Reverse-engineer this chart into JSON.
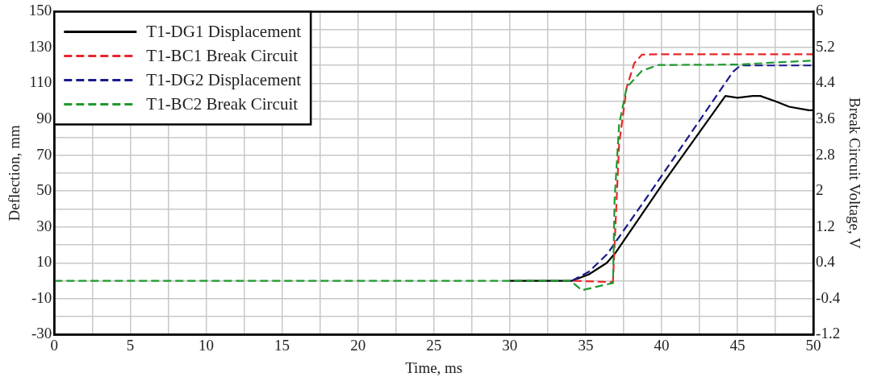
{
  "chart_data": {
    "type": "line",
    "xlabel": "Time, ms",
    "ylabel": "Deflection, mm",
    "y2label": "Break Circuit Voltage, V",
    "xlim": [
      0,
      50
    ],
    "xticks": [
      0,
      {
        "value": 2.5,
        "label": null
      },
      5,
      {
        "value": 7.5,
        "label": null
      },
      10,
      {
        "value": 12.5,
        "label": null
      },
      15,
      {
        "value": 17.5,
        "label": null
      },
      20,
      {
        "value": 22.5,
        "label": null
      },
      25,
      {
        "value": 27.5,
        "label": null
      },
      30,
      {
        "value": 32.5,
        "label": null
      },
      35,
      {
        "value": 37.5,
        "label": null
      },
      40,
      {
        "value": 42.5,
        "label": null
      },
      45,
      {
        "value": 47.5,
        "label": null
      },
      50
    ],
    "ylim": [
      -30,
      150
    ],
    "yticks": [
      -30,
      {
        "value": -20,
        "label": null
      },
      -10,
      {
        "value": 0,
        "label": null
      },
      10,
      {
        "value": 20,
        "label": null
      },
      30,
      {
        "value": 40,
        "label": null
      },
      50,
      {
        "value": 60,
        "label": null
      },
      70,
      {
        "value": 80,
        "label": null
      },
      90,
      {
        "value": 100,
        "label": null
      },
      110,
      {
        "value": 120,
        "label": null
      },
      130,
      {
        "value": 140,
        "label": null
      },
      150
    ],
    "y2lim": [
      -1.2,
      6
    ],
    "y2ticks": [
      -1.2,
      -0.4,
      0.4,
      1.2,
      2,
      2.8,
      3.6,
      4.4,
      5.2,
      6
    ],
    "grid": true,
    "legend": "top left",
    "marker": "none",
    "series": [
      {
        "name": "T1-DG1 Displacement",
        "color": "#000000",
        "line_style": "solid",
        "x": [
          30,
          34.1,
          35.2,
          36.4,
          37,
          40.2,
          44.2,
          45,
          46,
          46.5,
          47.5,
          48.4,
          49.7,
          50
        ],
        "values": [
          0,
          0,
          3.5,
          10,
          16,
          55.6,
          103,
          102,
          103,
          103,
          100,
          97,
          95,
          95
        ]
      },
      {
        "name": "T1-BC1 Break Circuit",
        "color": "#e8262a",
        "line_style": "dashed",
        "axis": "y2",
        "x": [
          34.2,
          36.7,
          36.8,
          37.2,
          37.7,
          38.2,
          38.7,
          40,
          50
        ],
        "values": [
          0,
          -0.03,
          0,
          3.04,
          4.31,
          4.85,
          5.04,
          5.05,
          5.05
        ]
      },
      {
        "name": "T1-DG2 Displacement",
        "color": "#1a1a8c",
        "line_style": "dashed",
        "x": [
          34.1,
          35.2,
          36.4,
          39.4,
          44.7,
          45.2,
          50
        ],
        "values": [
          0,
          5,
          14.7,
          51,
          116.5,
          120,
          120
        ]
      },
      {
        "name": "T1-BC2 Break Circuit",
        "color": "#1f9a2e",
        "line_style": "dashed",
        "axis": "y2",
        "x": [
          0,
          34,
          34.75,
          36.4,
          36.8,
          36.9,
          37.2,
          37.7,
          38.7,
          39.8,
          45,
          50
        ],
        "values": [
          0,
          0,
          -0.21,
          -0.08,
          -0.05,
          1.78,
          3.48,
          4.31,
          4.68,
          4.81,
          4.82,
          4.91
        ]
      }
    ]
  }
}
